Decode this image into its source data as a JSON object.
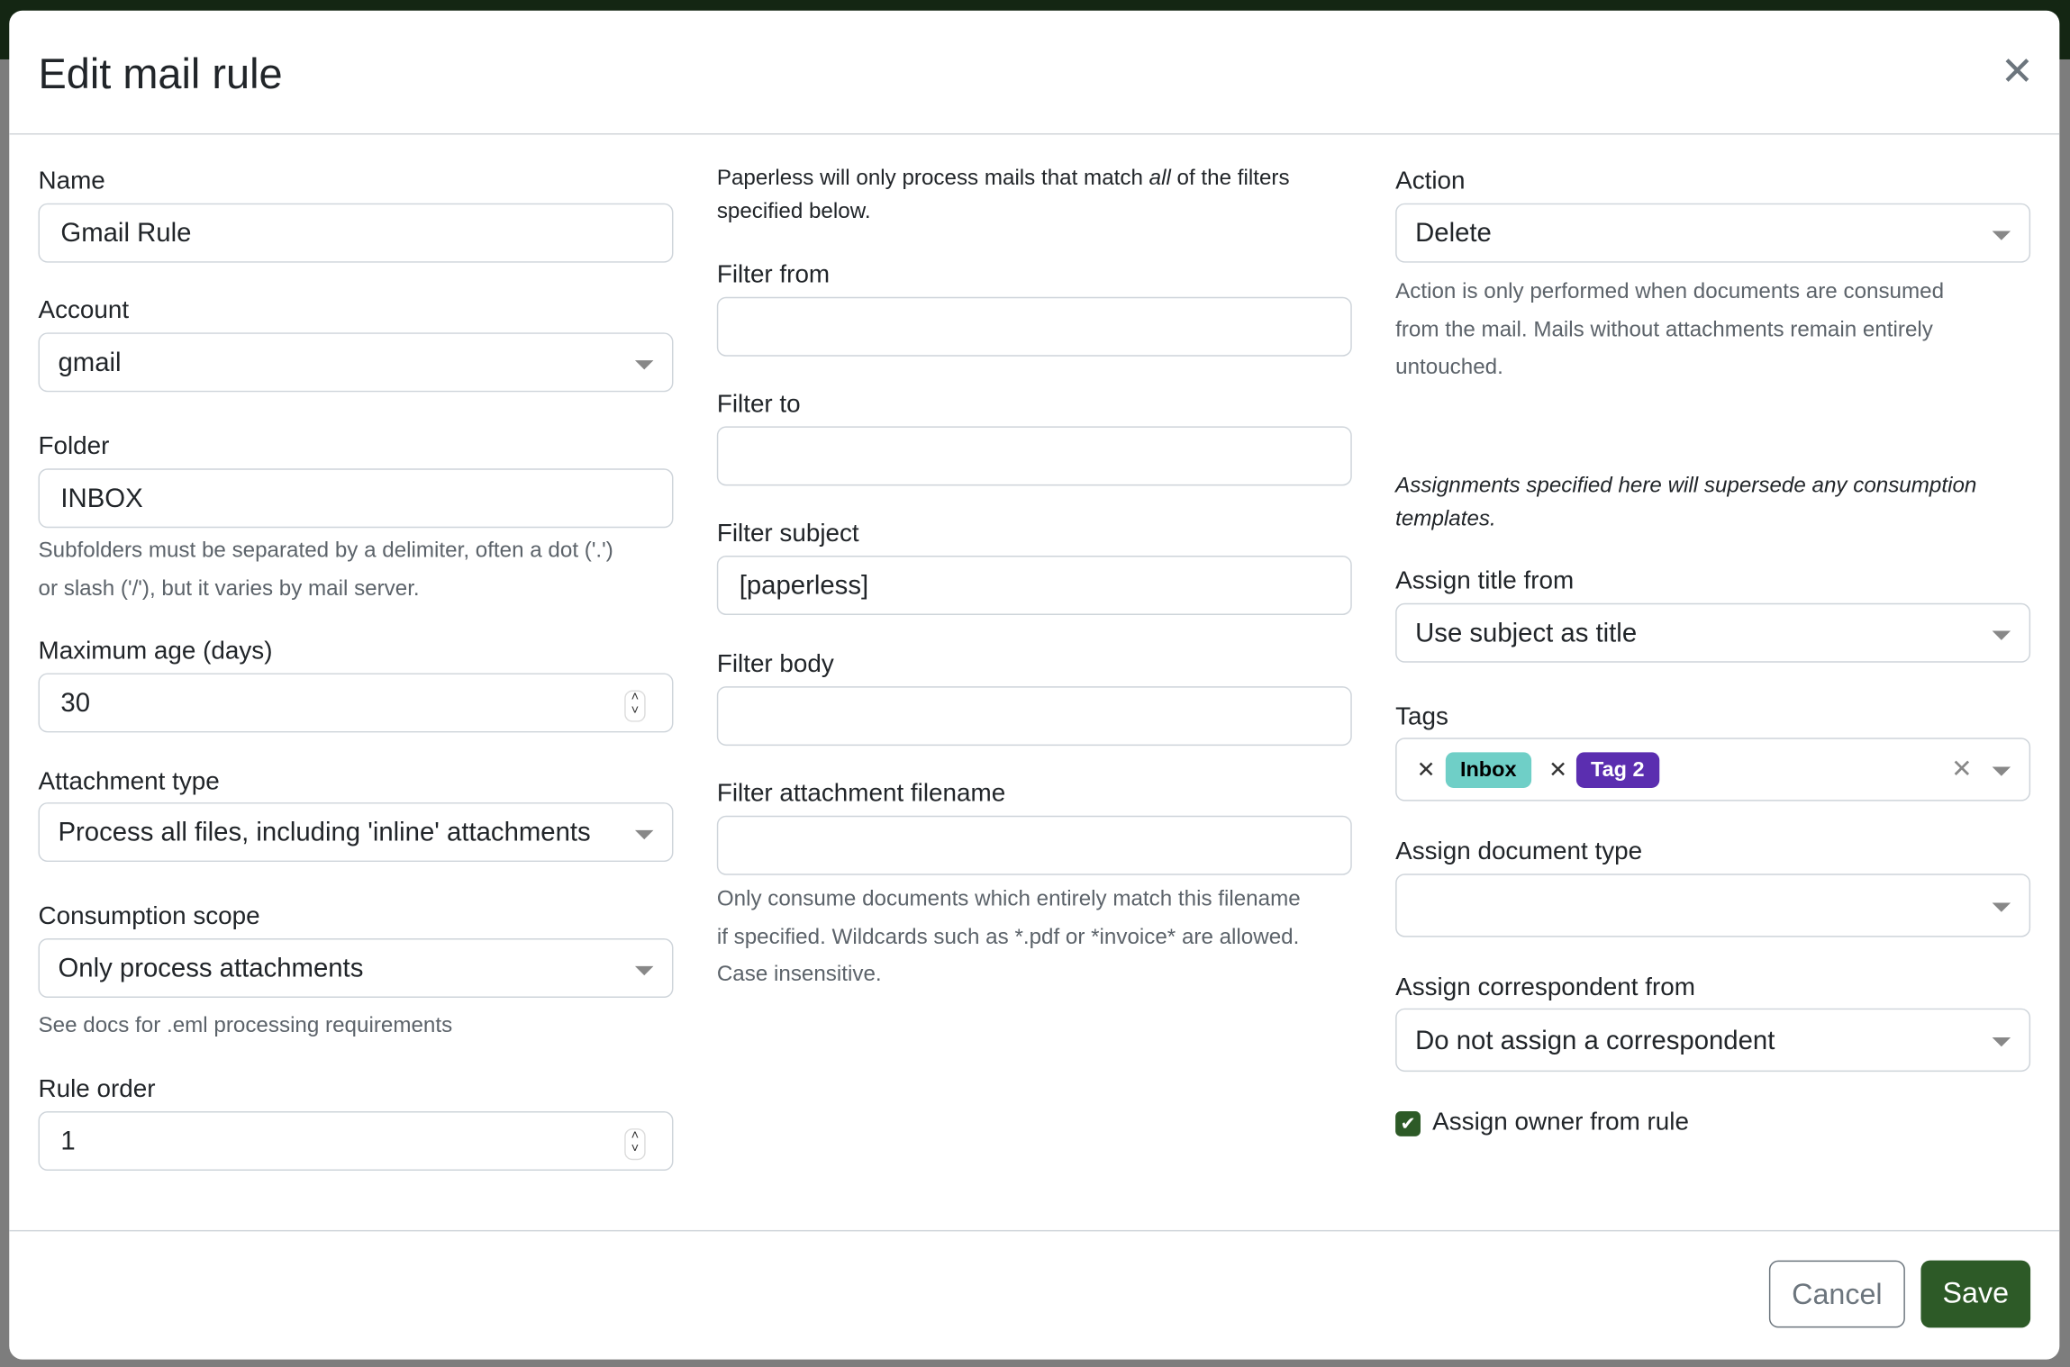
{
  "dialog": {
    "title": "Edit mail rule",
    "close_icon": "close-icon"
  },
  "left": {
    "name": {
      "label": "Name",
      "value": "Gmail Rule"
    },
    "account": {
      "label": "Account",
      "value": "gmail"
    },
    "folder": {
      "label": "Folder",
      "value": "INBOX",
      "help_line1": "Subfolders must be separated by a delimiter, often a dot ('.')",
      "help_line2": "or slash ('/'), but it varies by mail server."
    },
    "max_age": {
      "label": "Maximum age (days)",
      "value": "30"
    },
    "attachment_type": {
      "label": "Attachment type",
      "value": "Process all files, including 'inline' attachments"
    },
    "consumption_scope": {
      "label": "Consumption scope",
      "value": "Only process attachments",
      "help": "See docs for .eml processing requirements"
    },
    "rule_order": {
      "label": "Rule order",
      "value": "1"
    }
  },
  "middle": {
    "intro_prefix": "Paperless will only process mails that match ",
    "intro_em": "all",
    "intro_suffix": " of the filters",
    "intro_line2": "specified below.",
    "filter_from": {
      "label": "Filter from",
      "value": ""
    },
    "filter_to": {
      "label": "Filter to",
      "value": ""
    },
    "filter_subject": {
      "label": "Filter subject",
      "value": "[paperless]"
    },
    "filter_body": {
      "label": "Filter body",
      "value": ""
    },
    "filter_attachment": {
      "label": "Filter attachment filename",
      "value": "",
      "help_line1": "Only consume documents which entirely match this filename",
      "help_line2": "if specified. Wildcards such as *.pdf or *invoice* are allowed.",
      "help_line3": "Case insensitive."
    }
  },
  "right": {
    "action": {
      "label": "Action",
      "value": "Delete",
      "help_line1": "Action is only performed when documents are consumed",
      "help_line2": "from the mail. Mails without attachments remain entirely",
      "help_line3": "untouched."
    },
    "note_line1": "Assignments specified here will supersede any consumption",
    "note_line2": "templates.",
    "assign_title": {
      "label": "Assign title from",
      "value": "Use subject as title"
    },
    "tags": {
      "label": "Tags",
      "items": [
        {
          "label": "Inbox",
          "color": "#6fcfc7"
        },
        {
          "label": "Tag 2",
          "color": "#5b2eb0"
        }
      ]
    },
    "doc_type": {
      "label": "Assign document type",
      "value": ""
    },
    "correspondent": {
      "label": "Assign correspondent from",
      "value": "Do not assign a correspondent"
    },
    "owner": {
      "label": "Assign owner from rule",
      "checked": true
    }
  },
  "footer": {
    "cancel": "Cancel",
    "save": "Save"
  },
  "colors": {
    "primary": "#2d5a27",
    "backdrop": "#7d7d7d"
  }
}
